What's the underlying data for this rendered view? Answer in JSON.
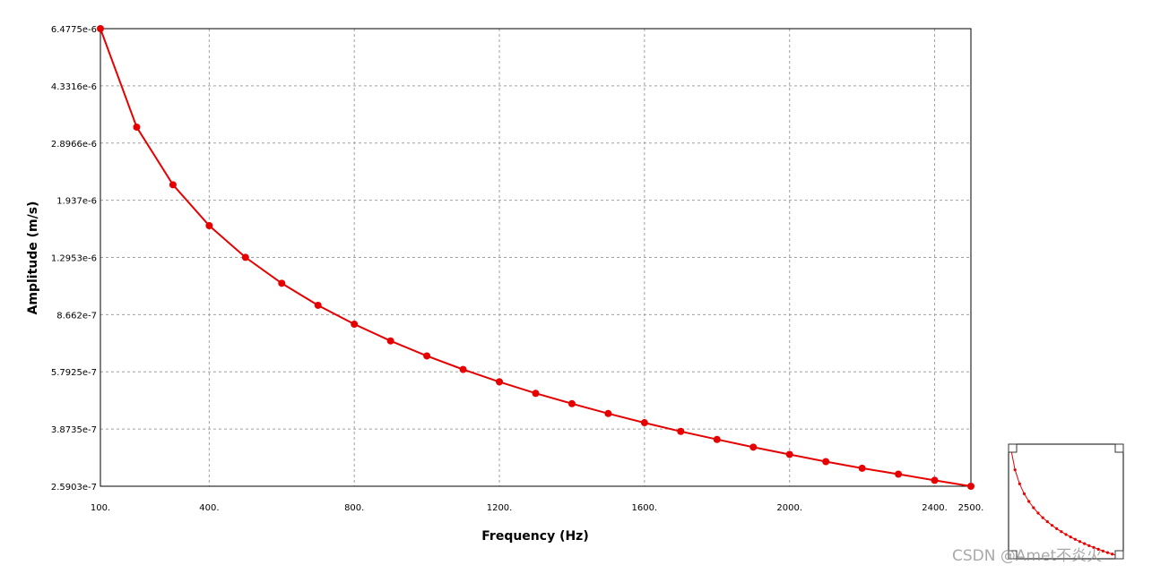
{
  "chart_data": {
    "type": "line",
    "title": "",
    "xlabel": "Frequency (Hz)",
    "ylabel": "Amplitude (m/s)",
    "xlim": [
      100,
      2500
    ],
    "ylim": [
      2.5903e-07,
      6.4775e-06
    ],
    "yscale": "log",
    "grid": true,
    "x_ticks": [
      {
        "value": 100,
        "label": "100."
      },
      {
        "value": 400,
        "label": "400."
      },
      {
        "value": 800,
        "label": "800."
      },
      {
        "value": 1200,
        "label": "1200."
      },
      {
        "value": 1600,
        "label": "1600."
      },
      {
        "value": 2000,
        "label": "2000."
      },
      {
        "value": 2400,
        "label": "2400."
      },
      {
        "value": 2500,
        "label": "2500."
      }
    ],
    "y_ticks": [
      {
        "value": 6.4775e-06,
        "label": "6.4775e-6"
      },
      {
        "value": 4.3316e-06,
        "label": "4.3316e-6"
      },
      {
        "value": 2.8966e-06,
        "label": "2.8966e-6"
      },
      {
        "value": 1.937e-06,
        "label": "1.937e-6"
      },
      {
        "value": 1.2953e-06,
        "label": "1.2953e-6"
      },
      {
        "value": 8.662e-07,
        "label": "8.662e-7"
      },
      {
        "value": 5.7925e-07,
        "label": "5.7925e-7"
      },
      {
        "value": 3.8735e-07,
        "label": "3.8735e-7"
      },
      {
        "value": 2.5903e-07,
        "label": "2.5903e-7"
      }
    ],
    "series": [
      {
        "color": "#e60000",
        "x": [
          100,
          200,
          300,
          400,
          500,
          600,
          700,
          800,
          900,
          1000,
          1100,
          1200,
          1300,
          1400,
          1500,
          1600,
          1700,
          1800,
          1900,
          2000,
          2100,
          2200,
          2300,
          2400,
          2500
        ],
        "y": [
          6.4775e-06,
          3.24e-06,
          2.16e-06,
          1.62e-06,
          1.296e-06,
          1.08e-06,
          9.25e-07,
          8.1e-07,
          7.2e-07,
          6.48e-07,
          5.89e-07,
          5.4e-07,
          4.98e-07,
          4.63e-07,
          4.32e-07,
          4.05e-07,
          3.81e-07,
          3.6e-07,
          3.41e-07,
          3.24e-07,
          3.08e-07,
          2.94e-07,
          2.82e-07,
          2.7e-07,
          2.5903e-07
        ]
      }
    ]
  },
  "watermark": "CSDN @Amet不炎火"
}
